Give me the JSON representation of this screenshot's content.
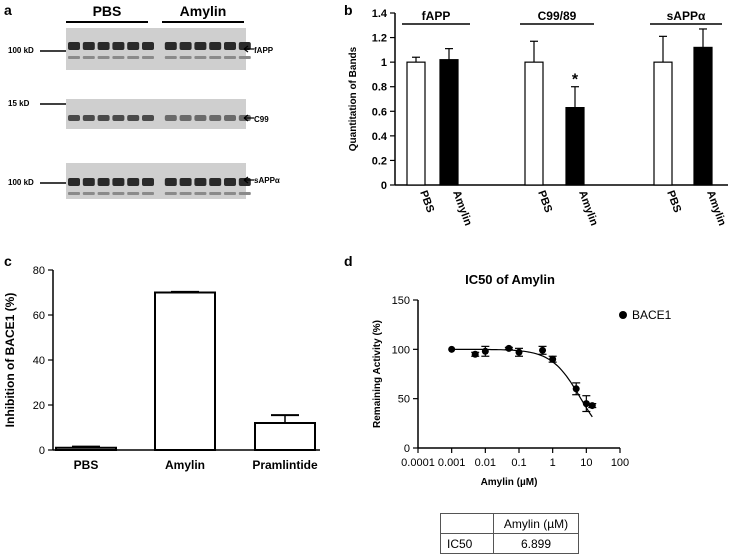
{
  "panels": {
    "a": {
      "label": "a",
      "groups": [
        "PBS",
        "Amylin"
      ],
      "markers": [
        "100 kD",
        "15 kD",
        "100 kD"
      ],
      "bands": [
        "fAPP",
        "C99",
        "sAPPα"
      ]
    },
    "b": {
      "label": "b"
    },
    "c": {
      "label": "c"
    },
    "d": {
      "label": "d"
    }
  },
  "chart_data": [
    {
      "type": "bar",
      "panel": "b",
      "group_titles": [
        "fAPP",
        "C99/89",
        "sAPPα"
      ],
      "categories": [
        "PBS",
        "Amylin",
        "PBS",
        "Amylin",
        "PBS",
        "Amylin"
      ],
      "values": [
        1.0,
        1.02,
        1.0,
        0.63,
        1.0,
        1.12
      ],
      "errors": [
        0.04,
        0.09,
        0.17,
        0.17,
        0.21,
        0.15
      ],
      "fill": [
        "white",
        "black",
        "white",
        "black",
        "white",
        "black"
      ],
      "annotations": [
        "",
        "",
        "",
        "*",
        "",
        ""
      ],
      "ylabel": "Quantitation of Bands",
      "ylim": [
        0,
        1.4
      ],
      "yticks": [
        "0",
        "0.2",
        "0.4",
        "0.6",
        "0.8",
        "1",
        "1.2",
        "1.4"
      ]
    },
    {
      "type": "bar",
      "panel": "c",
      "categories": [
        "PBS",
        "Amylin",
        "Pramlintide"
      ],
      "values": [
        1,
        70,
        12
      ],
      "errors": [
        0.5,
        0.3,
        3.5
      ],
      "ylabel": "Inhibition of  BACE1 (%)",
      "ylim": [
        0,
        80
      ],
      "yticks": [
        "0",
        "20",
        "40",
        "60",
        "80"
      ]
    },
    {
      "type": "scatter",
      "panel": "d",
      "title": "IC50 of Amylin",
      "xlabel": "Amylin (µM)",
      "ylabel": "Remaining Activity (%)",
      "xscale": "log",
      "xlim": [
        0.0001,
        100
      ],
      "ylim": [
        0,
        150
      ],
      "xticks": [
        "0.0001",
        "0.001",
        "0.01",
        "0.1",
        "1",
        "10",
        "100"
      ],
      "yticks": [
        "0",
        "50",
        "100",
        "150"
      ],
      "series": [
        {
          "name": "BACE1",
          "x": [
            0.001,
            0.005,
            0.01,
            0.05,
            0.1,
            0.5,
            1,
            5,
            10,
            15
          ],
          "y": [
            100,
            95,
            98,
            101,
            97,
            99,
            90,
            60,
            45,
            43
          ],
          "errors": [
            0,
            2,
            5,
            1,
            4,
            4,
            3,
            6,
            8,
            2
          ]
        }
      ],
      "fit": {
        "ic50": 6.899,
        "top": 100,
        "bottom": 0
      }
    }
  ],
  "ic50_table": {
    "header": "Amylin (µM)",
    "row_label": "IC50",
    "value": "6.899"
  }
}
